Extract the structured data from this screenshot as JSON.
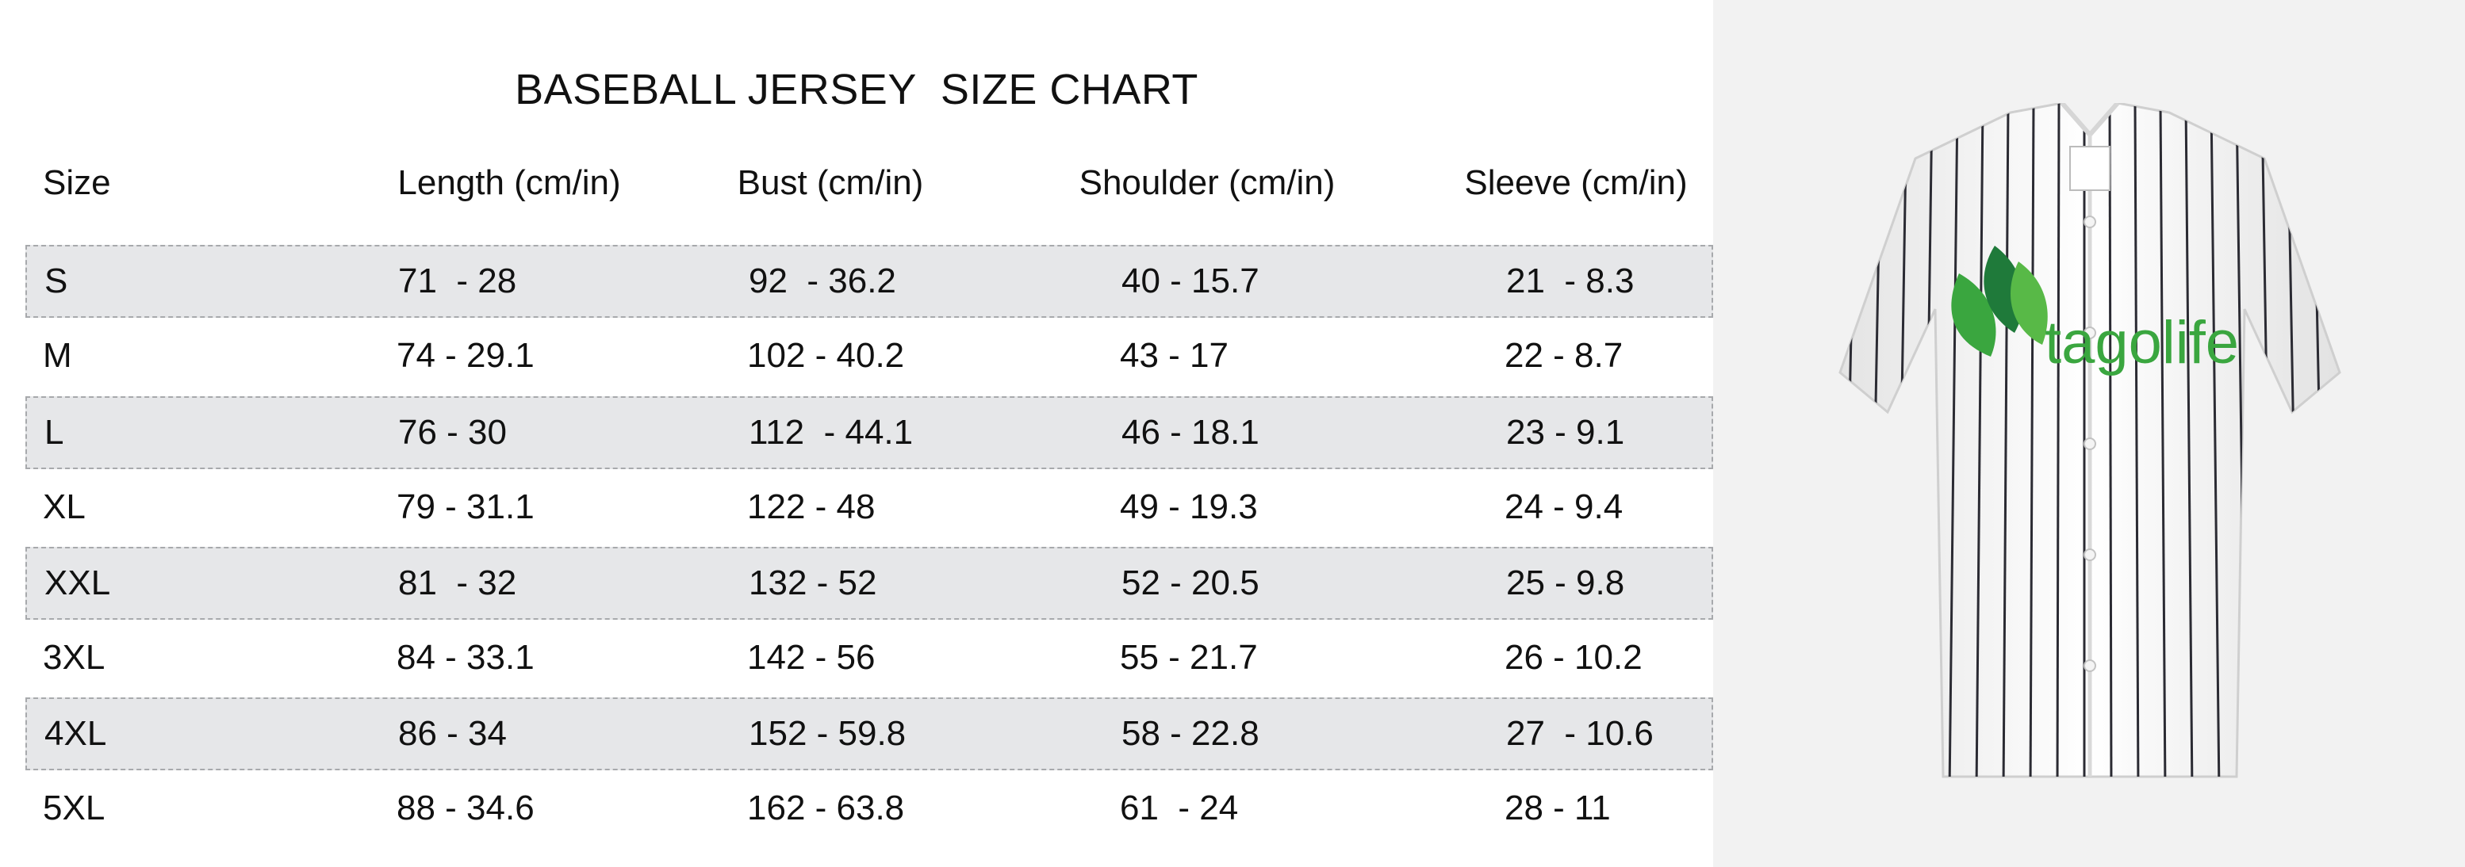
{
  "title": "BASEBALL JERSEY  SIZE CHART",
  "headers": {
    "size": "Size",
    "length": "Length (cm/in)",
    "bust": "Bust (cm/in)",
    "shoulder": "Shoulder (cm/in)",
    "sleeve": "Sleeve (cm/in)"
  },
  "rows": [
    {
      "size": "S",
      "length": "71  - 28",
      "bust": "92  - 36.2",
      "shoulder": "40 - 15.7",
      "sleeve": "21  - 8.3"
    },
    {
      "size": "M",
      "length": "74 - 29.1",
      "bust": "102 - 40.2",
      "shoulder": "43 - 17",
      "sleeve": "22 - 8.7"
    },
    {
      "size": "L",
      "length": "76 - 30",
      "bust": "112  - 44.1",
      "shoulder": "46 - 18.1",
      "sleeve": "23 - 9.1"
    },
    {
      "size": "XL",
      "length": "79 - 31.1",
      "bust": "122 - 48",
      "shoulder": "49 - 19.3",
      "sleeve": "24 - 9.4"
    },
    {
      "size": "XXL",
      "length": "81  - 32",
      "bust": "132 - 52",
      "shoulder": "52 - 20.5",
      "sleeve": "25 - 9.8"
    },
    {
      "size": "3XL",
      "length": "84 - 33.1",
      "bust": "142 - 56",
      "shoulder": "55 - 21.7",
      "sleeve": "26 - 10.2"
    },
    {
      "size": "4XL",
      "length": "86 - 34",
      "bust": "152 - 59.8",
      "shoulder": "58 - 22.8",
      "sleeve": "27  - 10.6"
    },
    {
      "size": "5XL",
      "length": "88 - 34.6",
      "bust": "162 - 63.8",
      "shoulder": "61  - 24",
      "sleeve": "28 - 11"
    }
  ],
  "logo": {
    "text": "tagolife",
    "color": "#3aa63f"
  },
  "colors": {
    "row_shade": "#e6e7e9",
    "row_border": "#a7a9ac",
    "image_background": "#f2f2f2"
  }
}
